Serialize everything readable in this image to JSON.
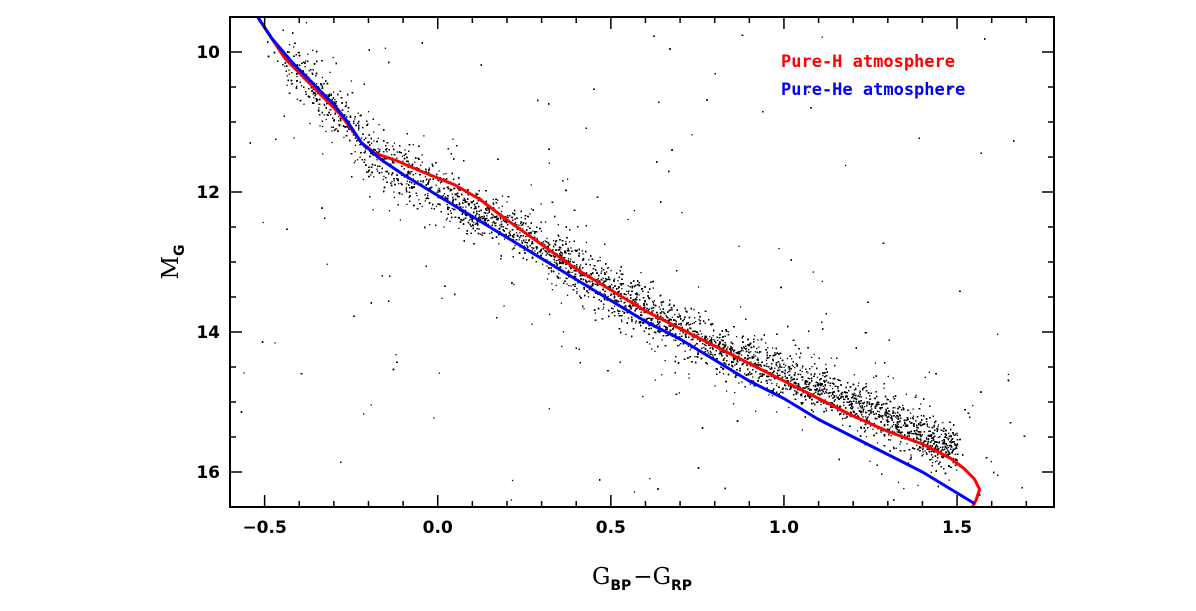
{
  "chart_data": {
    "type": "scatter",
    "xlim": [
      -0.6,
      1.78
    ],
    "ylim": [
      16.5,
      9.5
    ],
    "y_inverted": true,
    "grid": false,
    "legend_position": "top-right",
    "x_ticks": [
      -0.5,
      0.0,
      0.5,
      1.0,
      1.5
    ],
    "x_tick_labels": [
      "−0.5",
      "0.0",
      "0.5",
      "1.0",
      "1.5"
    ],
    "y_ticks": [
      10,
      12,
      14,
      16
    ],
    "y_tick_labels": [
      "10",
      "12",
      "14",
      "16"
    ],
    "xlabel": {
      "base1": "G",
      "sub1": "BP",
      "sep": "−",
      "base2": "G",
      "sub2": "RP"
    },
    "ylabel": {
      "base": "M",
      "sub": "G"
    },
    "scatter": {
      "description": "dense cloud of white dwarfs along cooling sequence",
      "point_color": "#000000",
      "sequence_ridge": [
        [
          -0.52,
          9.6
        ],
        [
          -0.4,
          10.3
        ],
        [
          -0.28,
          10.9
        ],
        [
          -0.2,
          11.4
        ],
        [
          -0.1,
          11.7
        ],
        [
          0.0,
          12.0
        ],
        [
          0.2,
          12.5
        ],
        [
          0.4,
          13.1
        ],
        [
          0.6,
          13.7
        ],
        [
          0.8,
          14.2
        ],
        [
          1.0,
          14.6
        ],
        [
          1.2,
          15.0
        ],
        [
          1.4,
          15.5
        ],
        [
          1.6,
          15.9
        ]
      ],
      "spread": 0.3,
      "count": 16000
    },
    "series": [
      {
        "name": "Pure-H atmosphere",
        "color": "#ff0000",
        "points": [
          [
            -0.52,
            9.5
          ],
          [
            -0.48,
            9.8
          ],
          [
            -0.44,
            10.1
          ],
          [
            -0.38,
            10.4
          ],
          [
            -0.32,
            10.7
          ],
          [
            -0.28,
            10.9
          ],
          [
            -0.25,
            11.1
          ],
          [
            -0.22,
            11.3
          ],
          [
            -0.18,
            11.45
          ],
          [
            -0.12,
            11.55
          ],
          [
            -0.05,
            11.7
          ],
          [
            0.0,
            11.8
          ],
          [
            0.05,
            11.9
          ],
          [
            0.12,
            12.1
          ],
          [
            0.2,
            12.4
          ],
          [
            0.3,
            12.75
          ],
          [
            0.4,
            13.1
          ],
          [
            0.5,
            13.4
          ],
          [
            0.6,
            13.7
          ],
          [
            0.7,
            13.95
          ],
          [
            0.8,
            14.2
          ],
          [
            0.9,
            14.45
          ],
          [
            1.0,
            14.7
          ],
          [
            1.1,
            14.95
          ],
          [
            1.2,
            15.2
          ],
          [
            1.3,
            15.42
          ],
          [
            1.4,
            15.6
          ],
          [
            1.48,
            15.8
          ],
          [
            1.52,
            15.95
          ],
          [
            1.55,
            16.1
          ],
          [
            1.565,
            16.25
          ],
          [
            1.555,
            16.4
          ],
          [
            1.545,
            16.5
          ]
        ]
      },
      {
        "name": "Pure-He atmosphere",
        "color": "#0000ff",
        "points": [
          [
            -0.52,
            9.5
          ],
          [
            -0.48,
            9.8
          ],
          [
            -0.42,
            10.15
          ],
          [
            -0.36,
            10.45
          ],
          [
            -0.3,
            10.75
          ],
          [
            -0.26,
            11.0
          ],
          [
            -0.22,
            11.3
          ],
          [
            -0.16,
            11.55
          ],
          [
            -0.1,
            11.75
          ],
          [
            -0.05,
            11.9
          ],
          [
            0.0,
            12.05
          ],
          [
            0.1,
            12.35
          ],
          [
            0.2,
            12.65
          ],
          [
            0.3,
            12.95
          ],
          [
            0.4,
            13.25
          ],
          [
            0.5,
            13.55
          ],
          [
            0.6,
            13.85
          ],
          [
            0.7,
            14.1
          ],
          [
            0.8,
            14.4
          ],
          [
            0.9,
            14.7
          ],
          [
            1.0,
            14.95
          ],
          [
            1.1,
            15.25
          ],
          [
            1.2,
            15.5
          ],
          [
            1.3,
            15.75
          ],
          [
            1.4,
            16.0
          ],
          [
            1.5,
            16.3
          ],
          [
            1.55,
            16.45
          ]
        ]
      }
    ]
  }
}
